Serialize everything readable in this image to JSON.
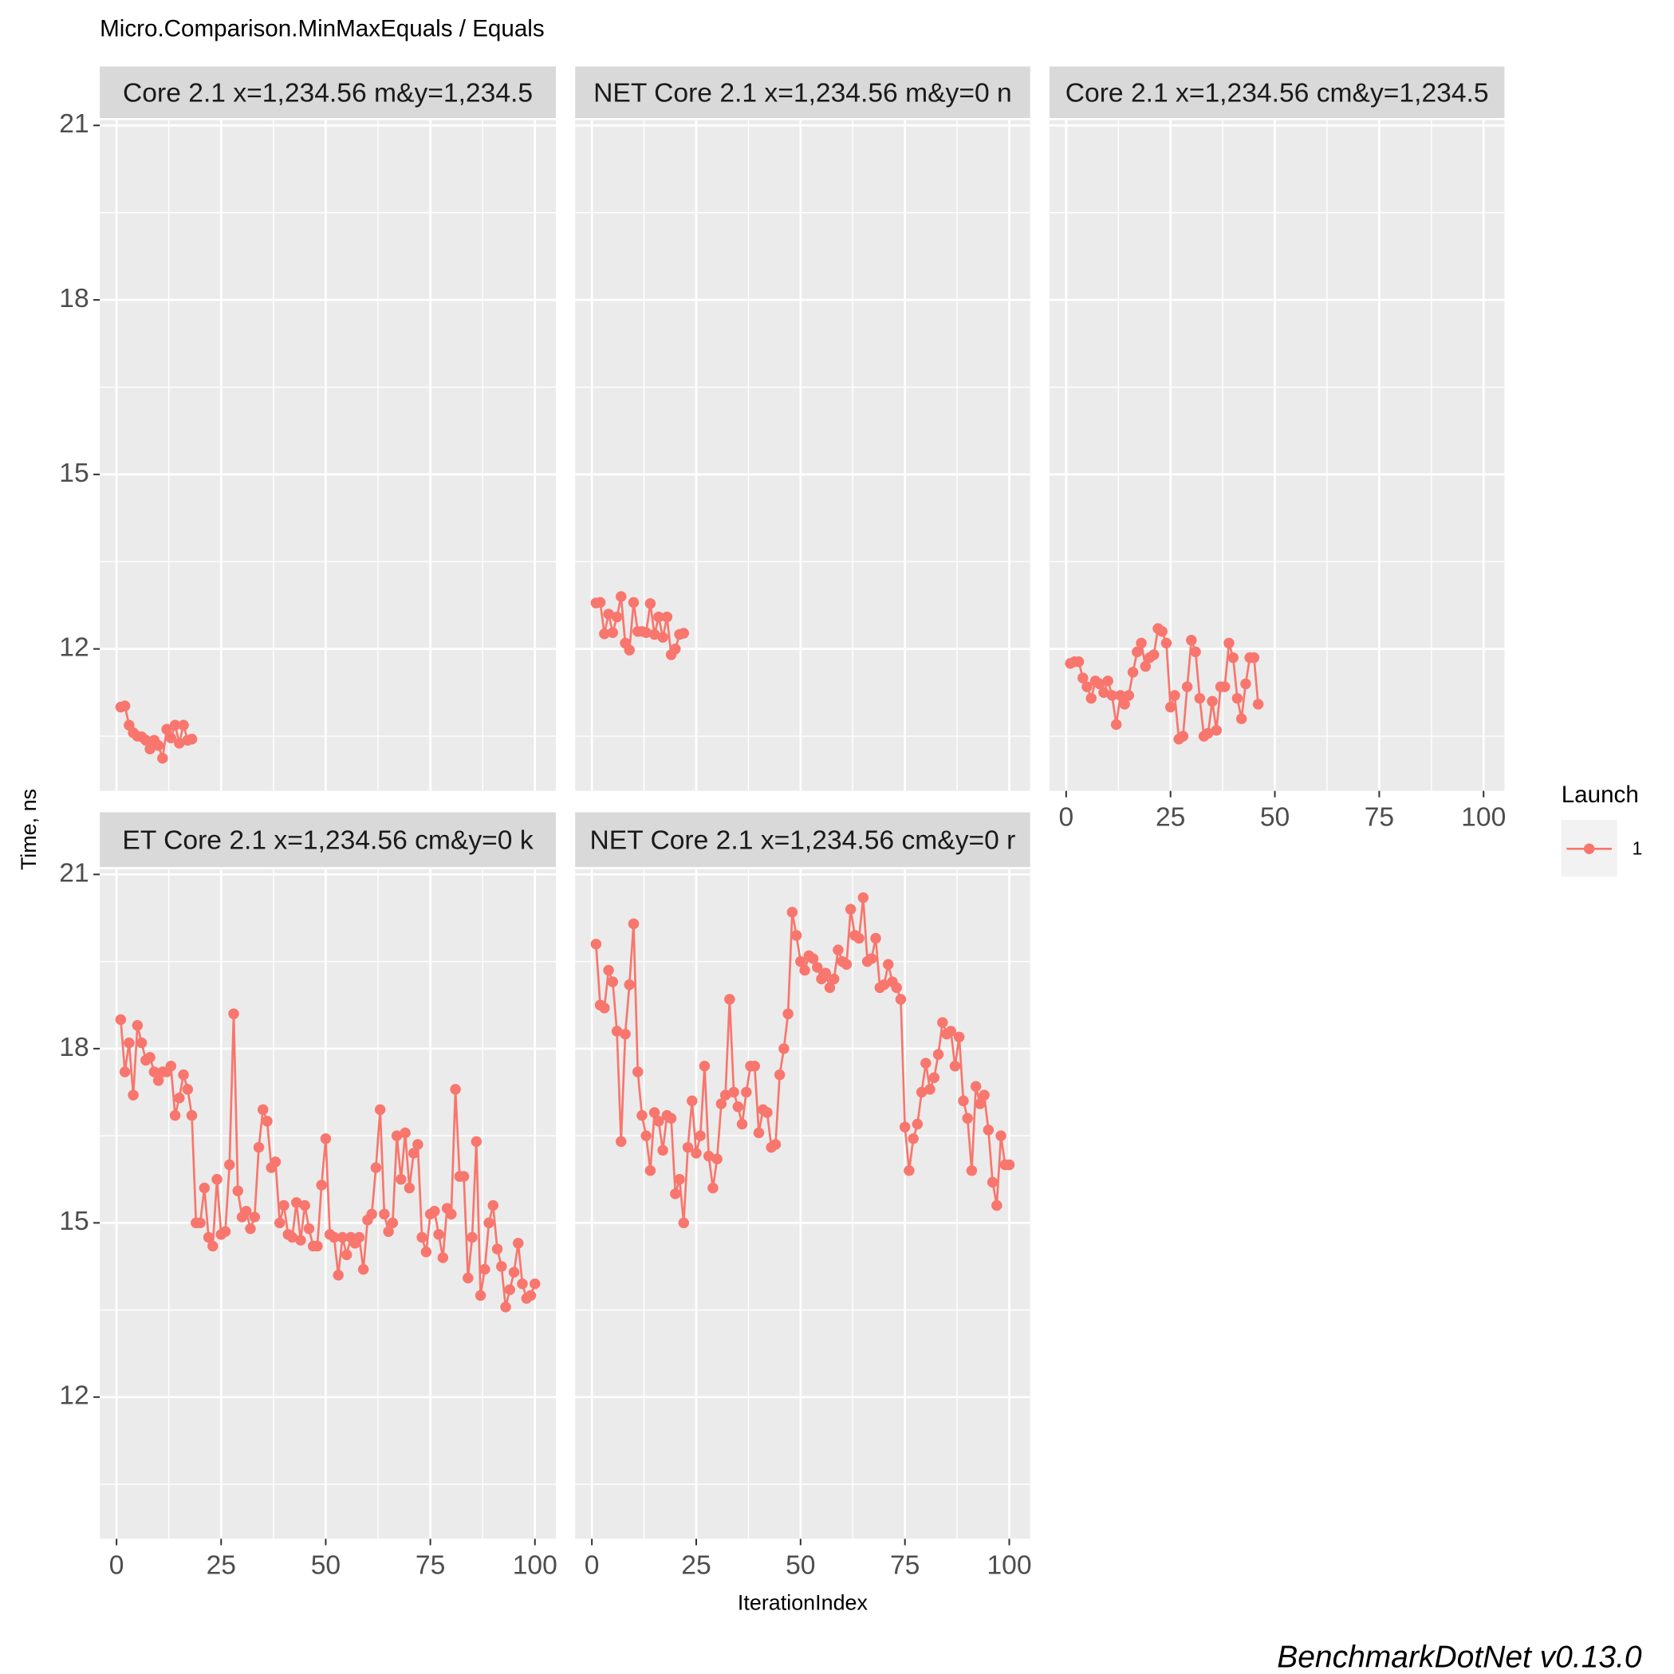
{
  "title": "Micro.Comparison.MinMaxEquals / Equals",
  "x_label": "IterationIndex",
  "y_label": "Time, ns",
  "legend_title": "Launch",
  "caption": "BenchmarkDotNet v0.13.0",
  "chart_data": [
    {
      "type": "line",
      "title": "Core 2.1 x=1,234.56 m&y=1,234.5",
      "x": [
        1,
        2,
        3,
        4,
        5,
        6,
        7,
        8,
        9,
        10,
        11,
        12,
        13,
        14,
        15,
        16,
        17,
        18
      ],
      "series": [
        {
          "name": "1",
          "color": "#F8766D",
          "values": [
            11.0,
            11.02,
            10.69,
            10.56,
            10.5,
            10.49,
            10.43,
            10.28,
            10.43,
            10.34,
            10.12,
            10.62,
            10.47,
            10.69,
            10.38,
            10.69,
            10.43,
            10.45
          ]
        }
      ],
      "xlim": [
        -4,
        105
      ],
      "ylim": [
        9.56,
        21.09
      ],
      "xticks": [
        0,
        25,
        50,
        75,
        100
      ],
      "yticks": [
        12,
        15,
        18,
        21
      ],
      "grid": true
    },
    {
      "type": "line",
      "title": "NET Core 2.1 x=1,234.56 m&y=0 n",
      "x": [
        1,
        2,
        3,
        4,
        5,
        6,
        7,
        8,
        9,
        10,
        11,
        12,
        13,
        14,
        15,
        16,
        17,
        18,
        19,
        20,
        21,
        22
      ],
      "series": [
        {
          "name": "1",
          "color": "#F8766D",
          "values": [
            12.79,
            12.8,
            12.26,
            12.6,
            12.28,
            12.55,
            12.9,
            12.1,
            11.98,
            12.8,
            12.3,
            12.3,
            12.28,
            12.78,
            12.25,
            12.55,
            12.2,
            12.55,
            11.9,
            12.0,
            12.25,
            12.27
          ]
        }
      ],
      "xlim": [
        -4,
        105
      ],
      "ylim": [
        9.56,
        21.09
      ],
      "xticks": [
        0,
        25,
        50,
        75,
        100
      ],
      "yticks": [
        12,
        15,
        18,
        21
      ],
      "grid": true
    },
    {
      "type": "line",
      "title": "Core 2.1 x=1,234.56 cm&y=1,234.5",
      "x": [
        1,
        2,
        3,
        4,
        5,
        6,
        7,
        8,
        9,
        10,
        11,
        12,
        13,
        14,
        15,
        16,
        17,
        18,
        19,
        20,
        21,
        22,
        23,
        24,
        25,
        26,
        27,
        28,
        29,
        30,
        31,
        32,
        33,
        34,
        35,
        36,
        37,
        38,
        39,
        40,
        41,
        42,
        43,
        44,
        45,
        46
      ],
      "series": [
        {
          "name": "1",
          "color": "#F8766D",
          "values": [
            11.75,
            11.78,
            11.78,
            11.5,
            11.35,
            11.15,
            11.45,
            11.4,
            11.25,
            11.45,
            11.2,
            10.7,
            11.2,
            11.05,
            11.2,
            11.6,
            11.95,
            12.1,
            11.7,
            11.85,
            11.9,
            12.35,
            12.3,
            12.1,
            11.0,
            11.2,
            10.45,
            10.5,
            11.35,
            12.15,
            11.95,
            11.15,
            10.5,
            10.55,
            11.1,
            10.6,
            11.35,
            11.35,
            12.1,
            11.85,
            11.15,
            10.8,
            11.4,
            11.85,
            11.85,
            11.05
          ]
        }
      ],
      "xlim": [
        -4,
        105
      ],
      "ylim": [
        9.56,
        21.09
      ],
      "xticks": [
        0,
        25,
        50,
        75,
        100
      ],
      "yticks": [
        12,
        15,
        18,
        21
      ],
      "grid": true
    },
    {
      "type": "line",
      "title": "ET Core 2.1 x=1,234.56 cm&y=0 k",
      "x": [
        1,
        2,
        3,
        4,
        5,
        6,
        7,
        8,
        9,
        10,
        11,
        12,
        13,
        14,
        15,
        16,
        17,
        18,
        19,
        20,
        21,
        22,
        23,
        24,
        25,
        26,
        27,
        28,
        29,
        30,
        31,
        32,
        33,
        34,
        35,
        36,
        37,
        38,
        39,
        40,
        41,
        42,
        43,
        44,
        45,
        46,
        47,
        48,
        49,
        50,
        51,
        52,
        53,
        54,
        55,
        56,
        57,
        58,
        59,
        60,
        61,
        62,
        63,
        64,
        65,
        66,
        67,
        68,
        69,
        70,
        71,
        72,
        73,
        74,
        75,
        76,
        77,
        78,
        79,
        80,
        81,
        82,
        83,
        84,
        85,
        86,
        87,
        88,
        89,
        90,
        91,
        92,
        93,
        94,
        95,
        96,
        97,
        98,
        99,
        100
      ],
      "series": [
        {
          "name": "1",
          "color": "#F8766D",
          "values": [
            18.5,
            17.6,
            18.1,
            17.2,
            18.4,
            18.1,
            17.8,
            17.85,
            17.6,
            17.45,
            17.6,
            17.6,
            17.7,
            16.85,
            17.15,
            17.55,
            17.3,
            16.85,
            15.0,
            15.0,
            15.6,
            14.75,
            14.6,
            15.75,
            14.8,
            14.85,
            16.0,
            18.6,
            15.55,
            15.1,
            15.2,
            14.9,
            15.1,
            16.3,
            16.95,
            16.75,
            15.95,
            16.05,
            15.0,
            15.3,
            14.8,
            14.75,
            15.35,
            14.7,
            15.3,
            14.9,
            14.6,
            14.6,
            15.65,
            16.45,
            14.8,
            14.75,
            14.1,
            14.75,
            14.45,
            14.75,
            14.65,
            14.75,
            14.2,
            15.05,
            15.15,
            15.95,
            16.95,
            15.15,
            14.85,
            15.0,
            16.5,
            15.75,
            16.55,
            15.6,
            16.2,
            16.35,
            14.75,
            14.5,
            15.15,
            15.2,
            14.8,
            14.4,
            15.25,
            15.15,
            17.3,
            15.8,
            15.8,
            14.05,
            14.75,
            16.4,
            13.75,
            14.2,
            15.0,
            15.3,
            14.55,
            14.25,
            13.55,
            13.85,
            14.15,
            14.65,
            13.95,
            13.7,
            13.75,
            13.95
          ]
        }
      ],
      "xlim": [
        -4,
        105
      ],
      "ylim": [
        9.56,
        21.09
      ],
      "xticks": [
        0,
        25,
        50,
        75,
        100
      ],
      "yticks": [
        12,
        15,
        18,
        21
      ],
      "grid": true
    },
    {
      "type": "line",
      "title": "NET Core 2.1 x=1,234.56 cm&y=0 r",
      "x": [
        1,
        2,
        3,
        4,
        5,
        6,
        7,
        8,
        9,
        10,
        11,
        12,
        13,
        14,
        15,
        16,
        17,
        18,
        19,
        20,
        21,
        22,
        23,
        24,
        25,
        26,
        27,
        28,
        29,
        30,
        31,
        32,
        33,
        34,
        35,
        36,
        37,
        38,
        39,
        40,
        41,
        42,
        43,
        44,
        45,
        46,
        47,
        48,
        49,
        50,
        51,
        52,
        53,
        54,
        55,
        56,
        57,
        58,
        59,
        60,
        61,
        62,
        63,
        64,
        65,
        66,
        67,
        68,
        69,
        70,
        71,
        72,
        73,
        74,
        75,
        76,
        77,
        78,
        79,
        80,
        81,
        82,
        83,
        84,
        85,
        86,
        87,
        88,
        89,
        90,
        91,
        92,
        93,
        94,
        95,
        96,
        97,
        98,
        99,
        100
      ],
      "series": [
        {
          "name": "1",
          "color": "#F8766D",
          "values": [
            19.8,
            18.75,
            18.7,
            19.35,
            19.15,
            18.3,
            16.4,
            18.25,
            19.1,
            20.15,
            17.6,
            16.85,
            16.5,
            15.9,
            16.9,
            16.75,
            16.25,
            16.85,
            16.8,
            15.5,
            15.75,
            15.0,
            16.3,
            17.1,
            16.2,
            16.5,
            17.7,
            16.15,
            15.6,
            16.1,
            17.05,
            17.2,
            18.85,
            17.25,
            17.0,
            16.7,
            17.25,
            17.7,
            17.7,
            16.55,
            16.95,
            16.9,
            16.3,
            16.35,
            17.55,
            18.0,
            18.6,
            20.35,
            19.95,
            19.5,
            19.35,
            19.6,
            19.55,
            19.4,
            19.2,
            19.3,
            19.05,
            19.2,
            19.7,
            19.5,
            19.45,
            20.4,
            19.95,
            19.9,
            20.6,
            19.5,
            19.55,
            19.9,
            19.05,
            19.1,
            19.45,
            19.15,
            19.05,
            18.85,
            16.65,
            15.9,
            16.45,
            16.7,
            17.25,
            17.75,
            17.3,
            17.5,
            17.9,
            18.45,
            18.25,
            18.3,
            17.7,
            18.2,
            17.1,
            16.8,
            15.9,
            17.35,
            17.05,
            17.2,
            16.6,
            15.7,
            15.3,
            16.5,
            16.0,
            16.0
          ]
        }
      ],
      "xlim": [
        -4,
        105
      ],
      "ylim": [
        9.56,
        21.09
      ],
      "xticks": [
        0,
        25,
        50,
        75,
        100
      ],
      "yticks": [
        12,
        15,
        18,
        21
      ],
      "grid": true
    }
  ]
}
